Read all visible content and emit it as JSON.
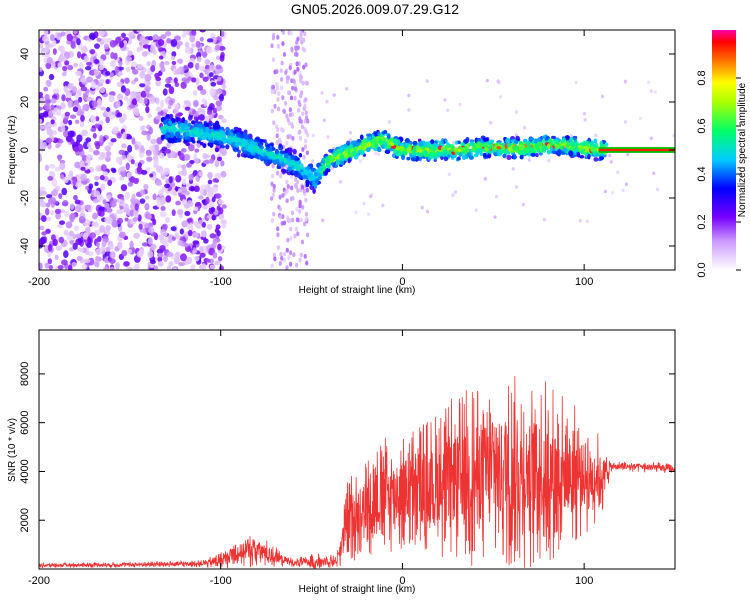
{
  "title": "GN05.2026.009.07.29.G12",
  "chart_data": [
    {
      "type": "heatmap",
      "xlabel": "Height of straight line (km)",
      "ylabel": "Frequency (Hz)",
      "xlim": [
        -200,
        150
      ],
      "ylim": [
        -50,
        50
      ],
      "xticks": [
        -200,
        -100,
        0,
        100
      ],
      "yticks": [
        -40,
        -20,
        0,
        20,
        40
      ],
      "colorbar": {
        "label": "Normalized spectral amplitude",
        "range": [
          0,
          1
        ],
        "ticks": [
          "0.0",
          "0.2",
          "0.4",
          "0.6",
          "0.8"
        ],
        "colors": [
          "#ffffff",
          "#8800ff",
          "#0000ff",
          "#00ffff",
          "#00ff00",
          "#ffff00",
          "#ff0000",
          "#ff00aa"
        ]
      },
      "ridge": {
        "x": [
          -130,
          -110,
          -95,
          -80,
          -65,
          -55,
          -48,
          -40,
          -30,
          -20,
          -12,
          -5,
          0,
          10,
          20,
          30,
          40,
          50,
          60,
          70,
          80,
          90,
          100,
          110,
          150
        ],
        "y": [
          9,
          7,
          5,
          0,
          -4,
          -8,
          -12,
          -4,
          -1,
          2,
          4,
          2,
          0,
          0,
          0,
          0,
          1,
          1,
          1,
          1,
          2,
          2,
          1,
          0,
          0
        ]
      },
      "noise_region_x": [
        -200,
        -100
      ]
    },
    {
      "type": "line",
      "xlabel": "Height of straight line (km)",
      "ylabel": "SNR (10 * v/v)",
      "xlim": [
        -200,
        150
      ],
      "ylim": [
        0,
        9800
      ],
      "xticks": [
        -200,
        -100,
        0,
        100
      ],
      "yticks": [
        2000,
        4000,
        6000,
        8000
      ],
      "series": [
        {
          "name": "SNR",
          "color": "#ee3333",
          "x": [
            -200,
            -150,
            -110,
            -100,
            -90,
            -80,
            -70,
            -60,
            -50,
            -36,
            -30,
            -20,
            -10,
            0,
            10,
            20,
            30,
            40,
            50,
            60,
            70,
            80,
            90,
            100,
            110,
            115,
            130,
            150
          ],
          "base": [
            150,
            180,
            220,
            350,
            700,
            800,
            500,
            250,
            300,
            350,
            2000,
            2600,
            3000,
            3200,
            3300,
            3500,
            3700,
            3900,
            4000,
            4000,
            4000,
            4000,
            4000,
            3800,
            3800,
            4200,
            4200,
            4100
          ],
          "amp": [
            120,
            150,
            180,
            450,
            800,
            900,
            550,
            200,
            400,
            400,
            2200,
            2600,
            3000,
            3200,
            3600,
            3800,
            4400,
            4800,
            5000,
            5000,
            5000,
            4800,
            4000,
            3200,
            2000,
            250,
            300,
            250
          ]
        }
      ]
    }
  ]
}
